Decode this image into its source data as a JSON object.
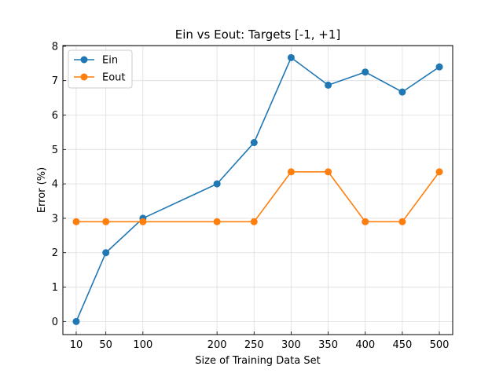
{
  "chart_data": {
    "type": "line",
    "title": "Ein vs Eout: Targets [-1, +1]",
    "xlabel": "Size of Training Data Set",
    "ylabel": "Error (%)",
    "x": [
      10,
      50,
      100,
      200,
      250,
      300,
      350,
      400,
      450,
      500
    ],
    "xticks": [
      "10",
      "50",
      "100",
      "200",
      "250",
      "300",
      "350",
      "400",
      "450",
      "500"
    ],
    "yticks": [
      "0",
      "1",
      "2",
      "3",
      "4",
      "5",
      "6",
      "7",
      "8"
    ],
    "xlim": [
      -8,
      518
    ],
    "ylim": [
      -0.38,
      8.02
    ],
    "grid": true,
    "legend": "upper-left",
    "series": [
      {
        "name": "Ein",
        "color": "#1f77b4",
        "values": [
          0.0,
          2.0,
          3.0,
          4.0,
          5.2,
          7.67,
          6.87,
          7.25,
          6.67,
          7.4
        ]
      },
      {
        "name": "Eout",
        "color": "#ff7f0e",
        "values": [
          2.9,
          2.9,
          2.9,
          2.9,
          2.9,
          4.35,
          4.35,
          2.9,
          2.9,
          4.35
        ]
      }
    ]
  }
}
